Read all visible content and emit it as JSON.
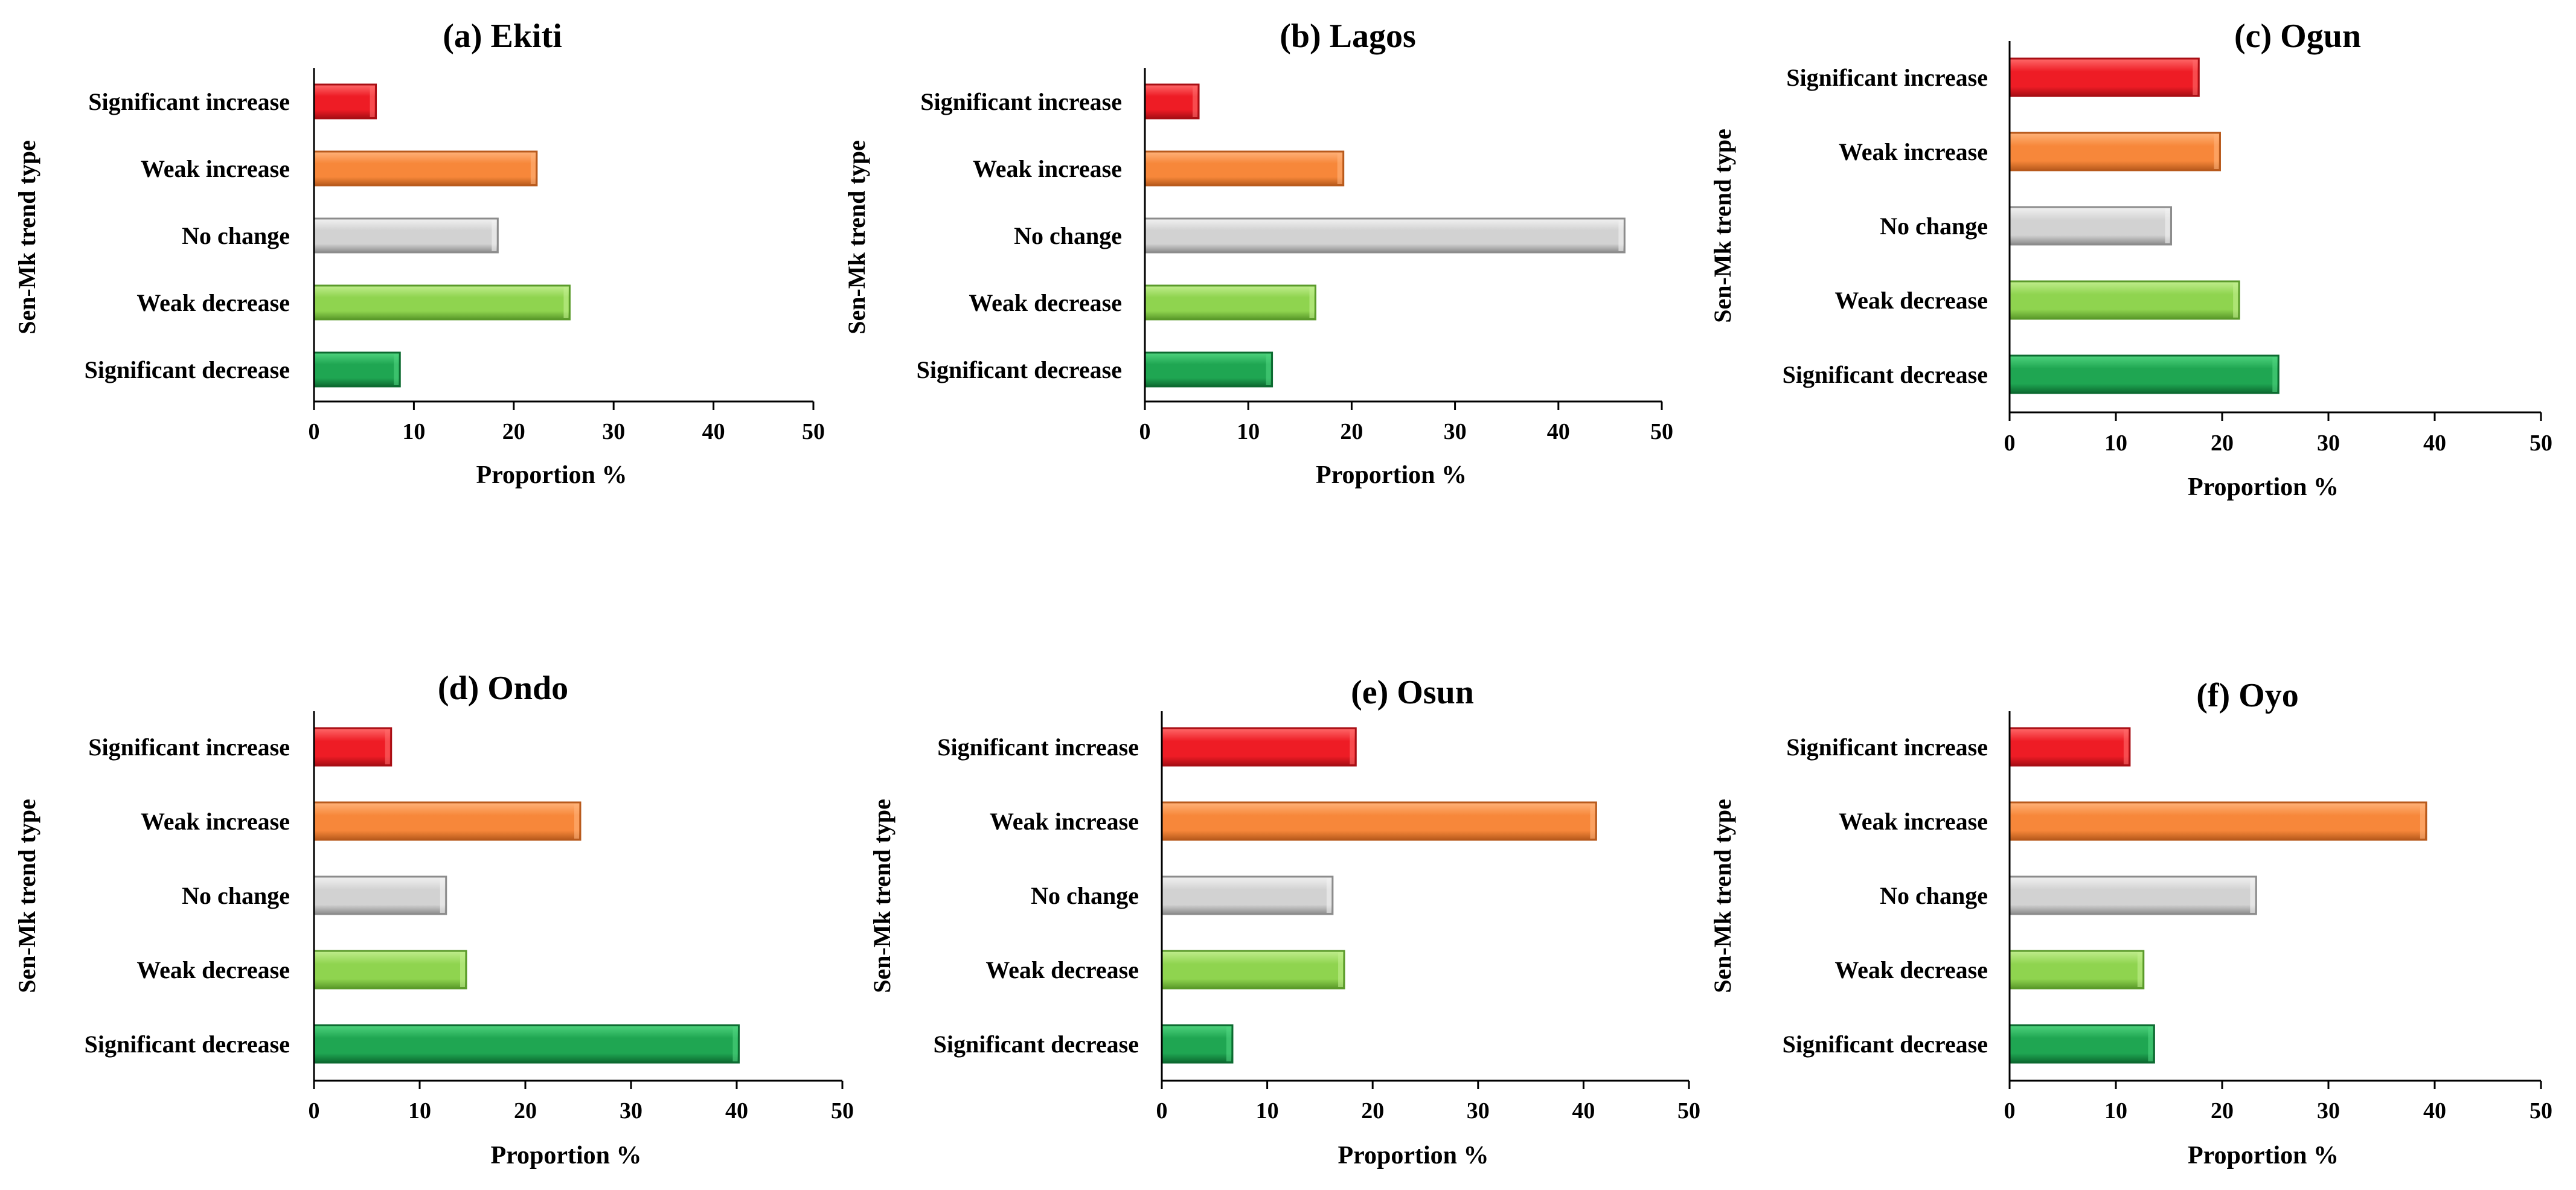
{
  "chart_data": [
    {
      "type": "bar",
      "title": "(a) Ekiti",
      "xlabel": "Proportion %",
      "ylabel": "Sen-Mk trend type",
      "categories": [
        "Significant increase",
        "Weak increase",
        "No change",
        "Weak decrease",
        "Significant decrease"
      ],
      "values": [
        6.2,
        22.3,
        18.4,
        25.6,
        8.6
      ],
      "xlim": [
        0,
        50
      ],
      "xticks": [
        "0",
        "10",
        "20",
        "30",
        "40",
        "50"
      ]
    },
    {
      "type": "bar",
      "title": "(b) Lagos",
      "xlabel": "Proportion %",
      "ylabel": "Sen-Mk trend type",
      "categories": [
        "Significant increase",
        "Weak increase",
        "No change",
        "Weak decrease",
        "Significant decrease"
      ],
      "values": [
        5.2,
        19.2,
        46.4,
        16.5,
        12.3
      ],
      "xlim": [
        0,
        50
      ],
      "xticks": [
        "0",
        "10",
        "20",
        "30",
        "40",
        "50"
      ]
    },
    {
      "type": "bar",
      "title": "(c) Ogun",
      "xlabel": "Proportion %",
      "ylabel": "Sen-Mk trend type",
      "categories": [
        "Significant increase",
        "Weak increase",
        "No change",
        "Weak decrease",
        "Significant decrease"
      ],
      "values": [
        17.8,
        19.8,
        15.2,
        21.6,
        25.3
      ],
      "xlim": [
        0,
        50
      ],
      "xticks": [
        "0",
        "10",
        "20",
        "30",
        "40",
        "50"
      ]
    },
    {
      "type": "bar",
      "title": "(d) Ondo",
      "xlabel": "Proportion %",
      "ylabel": "Sen-Mk trend type",
      "categories": [
        "Significant increase",
        "Weak increase",
        "No change",
        "Weak decrease",
        "Significant decrease"
      ],
      "values": [
        7.3,
        25.2,
        12.5,
        14.4,
        40.2
      ],
      "xlim": [
        0,
        50
      ],
      "xticks": [
        "0",
        "10",
        "20",
        "30",
        "40",
        "50"
      ]
    },
    {
      "type": "bar",
      "title": "(e) Osun",
      "xlabel": "Proportion %",
      "ylabel": "Sen-Mk trend type",
      "categories": [
        "Significant increase",
        "Weak increase",
        "No change",
        "Weak decrease",
        "Significant decrease"
      ],
      "values": [
        18.4,
        41.2,
        16.2,
        17.3,
        6.7
      ],
      "xlim": [
        0,
        50
      ],
      "xticks": [
        "0",
        "10",
        "20",
        "30",
        "40",
        "50"
      ]
    },
    {
      "type": "bar",
      "title": "(f) Oyo",
      "xlabel": "Proportion %",
      "ylabel": "Sen-Mk trend type",
      "categories": [
        "Significant increase",
        "Weak increase",
        "No change",
        "Weak decrease",
        "Significant decrease"
      ],
      "values": [
        11.3,
        39.2,
        23.2,
        12.6,
        13.6
      ],
      "xlim": [
        0,
        50
      ],
      "xticks": [
        "0",
        "10",
        "20",
        "30",
        "40",
        "50"
      ]
    }
  ],
  "colors": {
    "significant_increase": {
      "base": "#ee1c25",
      "light": "#ff6a6a",
      "dark": "#a80e14"
    },
    "weak_increase": {
      "base": "#f7873a",
      "light": "#ffb37a",
      "dark": "#b85a1c"
    },
    "no_change": {
      "base": "#d2d2d2",
      "light": "#f2f2f2",
      "dark": "#8c8c8c"
    },
    "weak_decrease": {
      "base": "#8fd44f",
      "light": "#c1ee8e",
      "dark": "#5a9a2a"
    },
    "significant_decrease": {
      "base": "#1fa652",
      "light": "#4fd47e",
      "dark": "#0c6a30"
    }
  }
}
